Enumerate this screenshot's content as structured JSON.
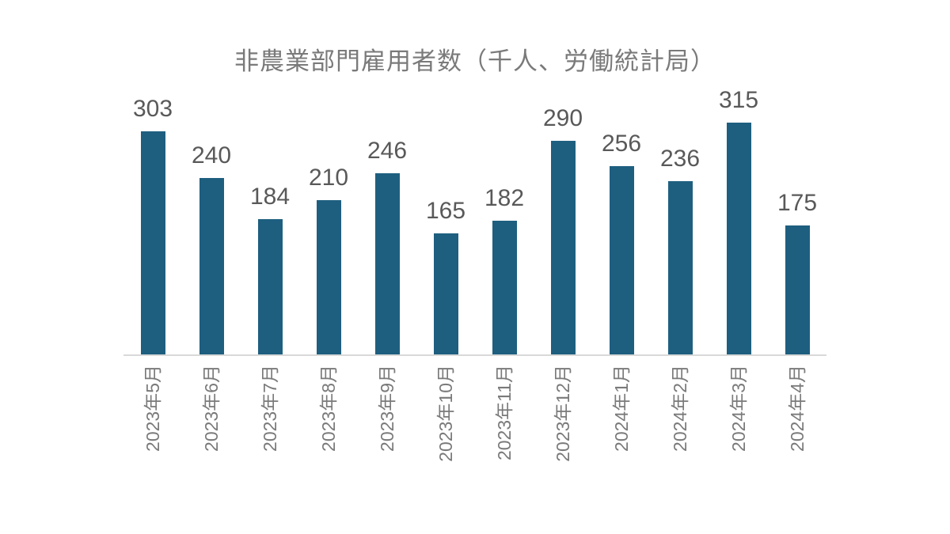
{
  "chart_data": {
    "type": "bar",
    "title": "非農業部門雇用者数（千人、労働統計局）",
    "categories": [
      "2023年5月",
      "2023年6月",
      "2023年7月",
      "2023年8月",
      "2023年9月",
      "2023年10月",
      "2023年11月",
      "2023年12月",
      "2024年1月",
      "2024年2月",
      "2024年3月",
      "2024年4月"
    ],
    "values": [
      303,
      240,
      184,
      210,
      246,
      165,
      182,
      290,
      256,
      236,
      315,
      175
    ],
    "xlabel": "",
    "ylabel": "",
    "ylim": [
      0,
      350
    ],
    "grid": false,
    "legend": "none",
    "data_labels_shown": true,
    "x_tick_rotation_degrees": 90
  },
  "colors": {
    "bar": "#1e5f7f",
    "title_text": "#7a7a7a",
    "data_label_text": "#595959",
    "tick_label_text": "#7a7a7a",
    "axis_line": "#d9d9d9",
    "background": "#ffffff"
  }
}
